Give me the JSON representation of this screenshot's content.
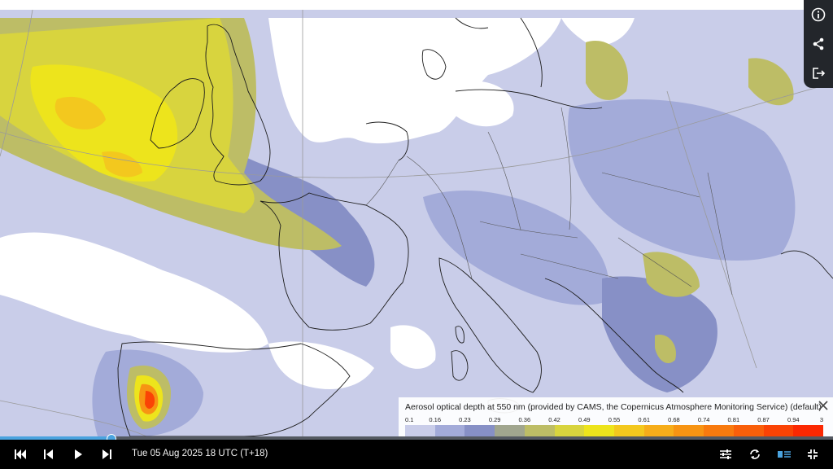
{
  "legend": {
    "title": "Aerosol optical depth at 550 nm (provided by CAMS, the Copernicus Atmosphere Monitoring Service) (default)",
    "ticks": [
      "0.1",
      "0.16",
      "0.23",
      "0.29",
      "0.36",
      "0.42",
      "0.49",
      "0.55",
      "0.61",
      "0.68",
      "0.74",
      "0.81",
      "0.87",
      "0.94",
      "3"
    ],
    "colors": [
      "#c9cde9",
      "#a3abd9",
      "#8790c6",
      "#a1a68f",
      "#bdbd66",
      "#d8d43e",
      "#ede41c",
      "#f3c81e",
      "#f6ad1a",
      "#f79413",
      "#f87a0e",
      "#f95f0a",
      "#fa4305",
      "#fb2802"
    ]
  },
  "timeline": {
    "label": "Tue 05 Aug 2025 18 UTC (T+18)",
    "progress": 0.134
  },
  "side_panel": {
    "icons": [
      "info-icon",
      "share-icon",
      "export-icon"
    ]
  },
  "controls": {
    "icons": [
      "skip-first-icon",
      "step-back-icon",
      "play-icon",
      "skip-last-icon",
      "settings-sliders-icon",
      "loop-icon",
      "layers-icon",
      "exit-fullscreen-icon"
    ]
  }
}
